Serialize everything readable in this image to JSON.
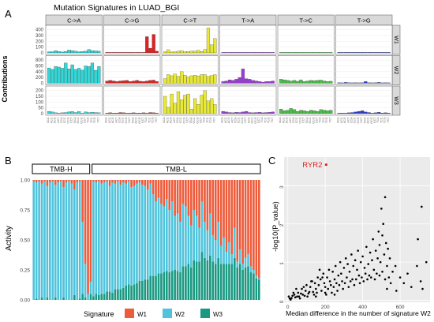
{
  "panel_labels": {
    "a": "A",
    "b": "B",
    "c": "C"
  },
  "colors": {
    "strip_bg": "#d9d9d9",
    "panel_bg": "#ffffff",
    "grid": "#ebebeb",
    "c_to_a": "#33d6d6",
    "c_to_g": "#dd2222",
    "c_to_t": "#e8e836",
    "t_to_a": "#9b3cd6",
    "t_to_c": "#48c048",
    "t_to_g": "#2b3ccc",
    "tmb_w1": "#ee5b3b",
    "tmb_w2": "#4fc4dc",
    "tmb_w3": "#1a9982",
    "scatter_bg": "#ebebeb",
    "scatter_point": "#000000",
    "highlight": "#dd2222"
  },
  "chart_data": [
    {
      "type": "bar",
      "title": "Mutation Signatures in LUAD_BGI",
      "ylabel": "Contributions",
      "facet_columns": [
        "C->A",
        "C->G",
        "C->T",
        "T->A",
        "T->C",
        "T->G"
      ],
      "facet_rows": [
        {
          "name": "W1",
          "yticks": [
            "0",
            "100",
            "200",
            "300",
            "400"
          ],
          "ylim": [
            0,
            450
          ],
          "values": {
            "C->A": [
              20,
              20,
              40,
              25,
              15,
              25,
              50,
              40,
              30,
              20,
              25,
              30,
              60,
              40,
              35,
              30
            ],
            "C->G": [
              5,
              5,
              5,
              5,
              5,
              5,
              5,
              5,
              5,
              5,
              5,
              5,
              280,
              80,
              320,
              30
            ],
            "C->T": [
              20,
              55,
              15,
              20,
              30,
              40,
              20,
              25,
              30,
              30,
              45,
              25,
              60,
              430,
              140,
              250
            ],
            "T->A": [
              5,
              5,
              5,
              5,
              5,
              5,
              5,
              5,
              5,
              5,
              5,
              5,
              5,
              5,
              5,
              5
            ],
            "T->C": [
              5,
              5,
              5,
              5,
              5,
              5,
              5,
              5,
              5,
              5,
              5,
              5,
              5,
              5,
              5,
              5
            ],
            "T->G": [
              5,
              5,
              5,
              5,
              5,
              5,
              5,
              5,
              5,
              5,
              5,
              5,
              5,
              5,
              5,
              5
            ]
          }
        },
        {
          "name": "W2",
          "yticks": [
            "0",
            "200",
            "400",
            "600",
            "800"
          ],
          "ylim": [
            0,
            900
          ],
          "values": {
            "C->A": [
              530,
              480,
              580,
              560,
              520,
              700,
              500,
              640,
              480,
              520,
              460,
              600,
              580,
              700,
              450,
              580
            ],
            "C->G": [
              80,
              100,
              80,
              60,
              80,
              90,
              100,
              60,
              80,
              100,
              70,
              60,
              80,
              100,
              110,
              60
            ],
            "C->T": [
              160,
              300,
              260,
              320,
              240,
              400,
              280,
              220,
              260,
              280,
              250,
              300,
              300,
              240,
              270,
              300
            ],
            "T->A": [
              60,
              80,
              120,
              100,
              140,
              200,
              500,
              160,
              140,
              100,
              80,
              60,
              40,
              60,
              60,
              80
            ],
            "T->C": [
              140,
              120,
              100,
              80,
              100,
              70,
              120,
              60,
              80,
              100,
              90,
              100,
              110,
              80,
              60,
              70
            ],
            "T->G": [
              20,
              10,
              30,
              20,
              10,
              20,
              10,
              20,
              60,
              20,
              10,
              20,
              30,
              10,
              20,
              10
            ]
          }
        },
        {
          "name": "W3",
          "yticks": [
            "0",
            "50",
            "100",
            "150",
            "200"
          ],
          "ylim": [
            0,
            225
          ],
          "values": {
            "C->A": [
              20,
              15,
              8,
              5,
              8,
              10,
              15,
              18,
              10,
              18,
              5,
              15,
              10,
              12,
              10,
              8
            ],
            "C->G": [
              5,
              8,
              5,
              6,
              10,
              8,
              5,
              6,
              8,
              5,
              6,
              8,
              5,
              10,
              8,
              5
            ],
            "C->T": [
              150,
              55,
              170,
              90,
              190,
              120,
              160,
              170,
              40,
              130,
              80,
              160,
              200,
              110,
              130,
              80
            ],
            "T->A": [
              20,
              15,
              10,
              8,
              12,
              10,
              15,
              20,
              10,
              8,
              10,
              12,
              8,
              10,
              12,
              15
            ],
            "T->C": [
              40,
              25,
              30,
              45,
              35,
              20,
              30,
              25,
              20,
              30,
              25,
              20,
              35,
              30,
              25,
              30
            ],
            "T->G": [
              5,
              6,
              5,
              8,
              10,
              15,
              20,
              25,
              15,
              10,
              5,
              8,
              12,
              6,
              8,
              5
            ]
          }
        }
      ]
    },
    {
      "type": "bar",
      "stacked": true,
      "ylabel": "Activity",
      "groups": [
        "TMB-H",
        "TMB-L"
      ],
      "group_sizes": [
        22,
        62
      ],
      "yticks": [
        "0.00",
        "0.25",
        "0.50",
        "0.75",
        "1.00"
      ],
      "ylim": [
        0,
        1
      ],
      "series": [
        {
          "name": "W1",
          "values": [
            0.01,
            0.02,
            0.01,
            0.03,
            0.01,
            0.05,
            0.02,
            0.01,
            0.04,
            0.02,
            0.01,
            0.06,
            0.02,
            0.01,
            0.03,
            0.08,
            0.02,
            0.01,
            0.35,
            0.7,
            0.95,
            0.85,
            0.01,
            0.02,
            0.01,
            0.03,
            0.02,
            0.01,
            0.05,
            0.02,
            0.03,
            0.01,
            0.04,
            0.02,
            0.03,
            0.01,
            0.06,
            0.05,
            0.03,
            0.02,
            0.04,
            0.05,
            0.08,
            0.03,
            0.12,
            0.18,
            0.15,
            0.2,
            0.22,
            0.16,
            0.25,
            0.18,
            0.3,
            0.28,
            0.35,
            0.2,
            0.22,
            0.3,
            0.38,
            0.25,
            0.3,
            0.4,
            0.18,
            0.35,
            0.42,
            0.28,
            0.46,
            0.5,
            0.35,
            0.55,
            0.48,
            0.6,
            0.52,
            0.62,
            0.4,
            0.68,
            0.58,
            0.7,
            0.65,
            0.62,
            0.72,
            0.75,
            0.8,
            0.82
          ]
        },
        {
          "name": "W2",
          "values": [
            0.99,
            0.97,
            0.99,
            0.95,
            0.99,
            0.93,
            0.98,
            0.99,
            0.94,
            0.98,
            0.99,
            0.92,
            0.98,
            0.99,
            0.97,
            0.88,
            0.98,
            0.98,
            0.6,
            0.28,
            0.05,
            0.1,
            0.96,
            0.93,
            0.95,
            0.92,
            0.93,
            0.92,
            0.88,
            0.92,
            0.88,
            0.9,
            0.87,
            0.88,
            0.85,
            0.86,
            0.82,
            0.82,
            0.83,
            0.82,
            0.8,
            0.78,
            0.75,
            0.77,
            0.68,
            0.62,
            0.63,
            0.58,
            0.55,
            0.6,
            0.52,
            0.58,
            0.45,
            0.48,
            0.42,
            0.52,
            0.5,
            0.4,
            0.35,
            0.42,
            0.38,
            0.28,
            0.42,
            0.3,
            0.25,
            0.35,
            0.22,
            0.2,
            0.3,
            0.15,
            0.22,
            0.1,
            0.18,
            0.08,
            0.25,
            0.05,
            0.12,
            0.05,
            0.08,
            0.1,
            0.05,
            0.03,
            0.02,
            0.01
          ]
        },
        {
          "name": "W3",
          "values": [
            0.0,
            0.01,
            0.0,
            0.02,
            0.0,
            0.02,
            0.0,
            0.0,
            0.02,
            0.0,
            0.0,
            0.02,
            0.0,
            0.0,
            0.0,
            0.04,
            0.0,
            0.01,
            0.05,
            0.02,
            0.0,
            0.05,
            0.03,
            0.05,
            0.04,
            0.05,
            0.05,
            0.07,
            0.07,
            0.06,
            0.09,
            0.09,
            0.09,
            0.1,
            0.12,
            0.13,
            0.12,
            0.13,
            0.14,
            0.16,
            0.16,
            0.17,
            0.17,
            0.2,
            0.2,
            0.2,
            0.22,
            0.22,
            0.23,
            0.24,
            0.23,
            0.24,
            0.25,
            0.24,
            0.23,
            0.28,
            0.28,
            0.3,
            0.27,
            0.33,
            0.32,
            0.32,
            0.4,
            0.35,
            0.33,
            0.37,
            0.32,
            0.3,
            0.35,
            0.3,
            0.3,
            0.3,
            0.3,
            0.3,
            0.35,
            0.27,
            0.3,
            0.25,
            0.27,
            0.28,
            0.23,
            0.22,
            0.18,
            0.17
          ]
        }
      ],
      "legend": {
        "title": "Signature",
        "position": "bottom"
      }
    },
    {
      "type": "scatter",
      "xlabel": "Median difference in the number of signature W2",
      "ylabel": "-log10(P_value)",
      "xticks": [
        "0",
        "200",
        "400",
        "600"
      ],
      "yticks": [
        "0",
        "1",
        "2",
        "3"
      ],
      "xlim": [
        -20,
        760
      ],
      "ylim": [
        -0.05,
        3.75
      ],
      "annotation": {
        "text": "RYR2",
        "x": 205,
        "y": 3.55
      },
      "points": [
        [
          10,
          0.05
        ],
        [
          25,
          0.12
        ],
        [
          40,
          0.08
        ],
        [
          55,
          0.2
        ],
        [
          60,
          0.1
        ],
        [
          75,
          0.3
        ],
        [
          80,
          0.15
        ],
        [
          95,
          0.25
        ],
        [
          100,
          0.4
        ],
        [
          110,
          0.18
        ],
        [
          120,
          0.35
        ],
        [
          130,
          0.5
        ],
        [
          135,
          0.22
        ],
        [
          145,
          0.45
        ],
        [
          150,
          0.3
        ],
        [
          160,
          0.6
        ],
        [
          165,
          0.4
        ],
        [
          175,
          0.55
        ],
        [
          180,
          0.25
        ],
        [
          190,
          0.7
        ],
        [
          195,
          0.45
        ],
        [
          200,
          0.35
        ],
        [
          210,
          0.6
        ],
        [
          220,
          0.8
        ],
        [
          225,
          0.5
        ],
        [
          230,
          0.4
        ],
        [
          240,
          0.75
        ],
        [
          250,
          0.55
        ],
        [
          255,
          0.9
        ],
        [
          260,
          0.45
        ],
        [
          270,
          0.65
        ],
        [
          280,
          1.0
        ],
        [
          285,
          0.7
        ],
        [
          290,
          0.5
        ],
        [
          300,
          0.85
        ],
        [
          310,
          1.1
        ],
        [
          315,
          0.6
        ],
        [
          320,
          0.95
        ],
        [
          330,
          0.75
        ],
        [
          340,
          1.2
        ],
        [
          345,
          0.55
        ],
        [
          350,
          0.9
        ],
        [
          360,
          1.05
        ],
        [
          370,
          0.8
        ],
        [
          375,
          1.3
        ],
        [
          380,
          0.65
        ],
        [
          390,
          1.0
        ],
        [
          400,
          1.15
        ],
        [
          410,
          0.85
        ],
        [
          420,
          1.4
        ],
        [
          430,
          0.95
        ],
        [
          440,
          1.25
        ],
        [
          450,
          1.05
        ],
        [
          455,
          1.6
        ],
        [
          460,
          0.8
        ],
        [
          470,
          1.3
        ],
        [
          480,
          1.1
        ],
        [
          485,
          1.8
        ],
        [
          490,
          1.45
        ],
        [
          495,
          1.0
        ],
        [
          500,
          2.4
        ],
        [
          505,
          1.7
        ],
        [
          510,
          2.0
        ],
        [
          515,
          1.2
        ],
        [
          520,
          2.7
        ],
        [
          525,
          1.5
        ],
        [
          530,
          0.9
        ],
        [
          535,
          1.35
        ],
        [
          540,
          0.6
        ],
        [
          545,
          1.1
        ],
        [
          560,
          0.75
        ],
        [
          575,
          0.9
        ],
        [
          600,
          0.6
        ],
        [
          620,
          0.45
        ],
        [
          640,
          0.7
        ],
        [
          660,
          0.35
        ],
        [
          690,
          0.9
        ],
        [
          710,
          0.5
        ],
        [
          720,
          0.3
        ],
        [
          740,
          1.0
        ],
        [
          715,
          2.45
        ],
        [
          695,
          1.6
        ],
        [
          15,
          0.02
        ],
        [
          30,
          0.2
        ],
        [
          45,
          0.3
        ],
        [
          65,
          0.05
        ],
        [
          85,
          0.35
        ],
        [
          105,
          0.1
        ],
        [
          125,
          0.5
        ],
        [
          140,
          0.15
        ],
        [
          155,
          0.2
        ],
        [
          170,
          0.8
        ],
        [
          185,
          0.6
        ],
        [
          205,
          0.15
        ],
        [
          215,
          0.3
        ],
        [
          235,
          0.2
        ],
        [
          245,
          0.35
        ],
        [
          265,
          0.25
        ],
        [
          275,
          0.4
        ],
        [
          295,
          0.3
        ],
        [
          305,
          0.45
        ],
        [
          325,
          0.35
        ],
        [
          335,
          0.5
        ],
        [
          355,
          0.4
        ],
        [
          365,
          0.55
        ],
        [
          385,
          0.45
        ],
        [
          395,
          0.6
        ],
        [
          405,
          0.5
        ],
        [
          415,
          0.7
        ],
        [
          425,
          0.55
        ],
        [
          435,
          0.65
        ],
        [
          445,
          0.6
        ],
        [
          465,
          0.55
        ],
        [
          475,
          0.7
        ],
        [
          490,
          0.65
        ],
        [
          505,
          0.75
        ],
        [
          520,
          0.55
        ],
        [
          530,
          0.3
        ],
        [
          550,
          0.45
        ],
        [
          580,
          0.25
        ],
        [
          5,
          0.1
        ],
        [
          20,
          0.06
        ],
        [
          35,
          0.15
        ],
        [
          50,
          0.1
        ],
        [
          70,
          0.18
        ],
        [
          90,
          0.12
        ],
        [
          115,
          0.22
        ],
        [
          150,
          0.1
        ],
        [
          200,
          0.2
        ],
        [
          250,
          0.15
        ]
      ]
    }
  ]
}
